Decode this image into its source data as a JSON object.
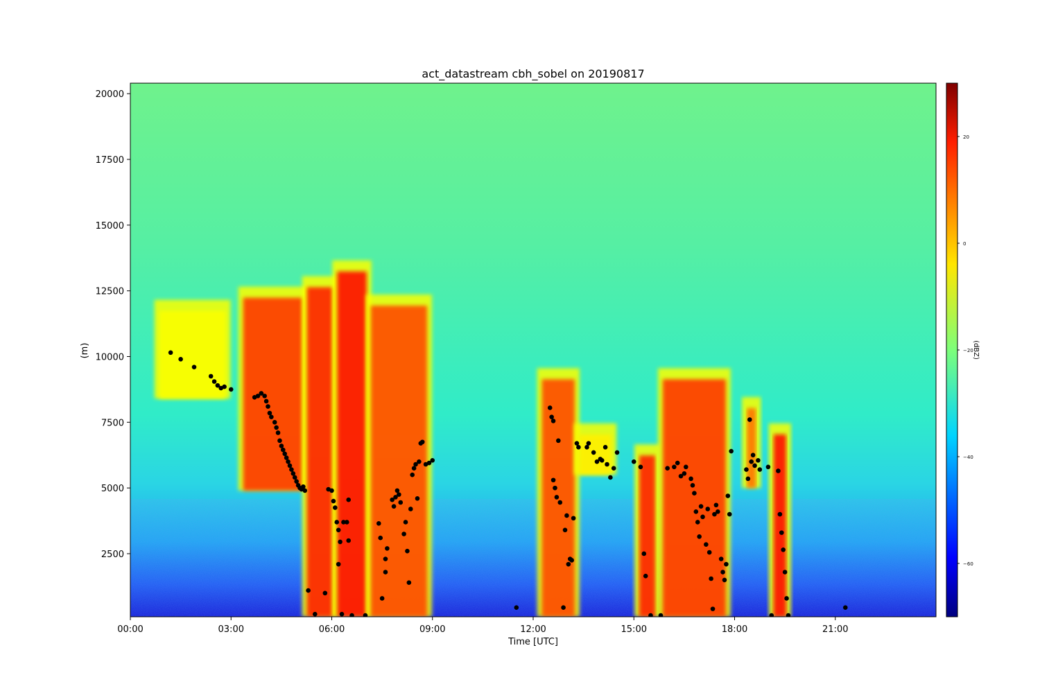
{
  "chart_data": {
    "type": "heatmap",
    "title": "act_datastream cbh_sobel on 20190817",
    "xlabel": "Time [UTC]",
    "ylabel": "(m)",
    "colorbar_label": "(dBZ)",
    "colormap": "jet",
    "x_ticks": [
      "00:00",
      "03:00",
      "06:00",
      "09:00",
      "12:00",
      "15:00",
      "18:00",
      "21:00"
    ],
    "x_tick_hours": [
      0,
      3,
      6,
      9,
      12,
      15,
      18,
      21
    ],
    "xlim_hours": [
      0,
      24
    ],
    "y_ticks": [
      2500,
      5000,
      7500,
      10000,
      12500,
      15000,
      17500,
      20000
    ],
    "ylim": [
      100,
      20400
    ],
    "colorbar_ticks": [
      20,
      0,
      -20,
      -40,
      -60
    ],
    "colorbar_range": [
      -70,
      30
    ],
    "background": {
      "description": "noise field",
      "near_surface_dbz": -55,
      "mid_altitude_dbz": -32,
      "upper_altitude_dbz": -25
    },
    "echo_features": [
      {
        "t_start": 0.8,
        "t_end": 2.9,
        "base": 8400,
        "top": 12000,
        "dbz": -8
      },
      {
        "t_start": 3.3,
        "t_end": 5.2,
        "base": 4900,
        "top": 12500,
        "dbz": 12
      },
      {
        "t_start": 5.2,
        "t_end": 6.1,
        "base": 100,
        "top": 12900,
        "dbz": 14
      },
      {
        "t_start": 6.1,
        "t_end": 7.1,
        "base": 100,
        "top": 13500,
        "dbz": 16
      },
      {
        "t_start": 7.1,
        "t_end": 8.9,
        "base": 100,
        "top": 12200,
        "dbz": 10
      },
      {
        "t_start": 12.2,
        "t_end": 13.3,
        "base": 100,
        "top": 9400,
        "dbz": 10
      },
      {
        "t_start": 13.3,
        "t_end": 14.4,
        "base": 5500,
        "top": 7300,
        "dbz": -6
      },
      {
        "t_start": 15.1,
        "t_end": 15.7,
        "base": 100,
        "top": 6500,
        "dbz": 14
      },
      {
        "t_start": 15.8,
        "t_end": 17.8,
        "base": 100,
        "top": 9400,
        "dbz": 12
      },
      {
        "t_start": 18.3,
        "t_end": 18.7,
        "base": 5000,
        "top": 8300,
        "dbz": 6
      },
      {
        "t_start": 19.1,
        "t_end": 19.6,
        "base": 100,
        "top": 7300,
        "dbz": 16
      }
    ],
    "cbh_points": [
      [
        1.2,
        10150
      ],
      [
        1.5,
        9900
      ],
      [
        1.9,
        9600
      ],
      [
        2.4,
        9250
      ],
      [
        2.5,
        9050
      ],
      [
        2.6,
        8900
      ],
      [
        2.7,
        8800
      ],
      [
        2.8,
        8850
      ],
      [
        3.0,
        8750
      ],
      [
        3.7,
        8450
      ],
      [
        3.8,
        8500
      ],
      [
        3.9,
        8600
      ],
      [
        4.0,
        8500
      ],
      [
        4.05,
        8300
      ],
      [
        4.1,
        8100
      ],
      [
        4.15,
        7850
      ],
      [
        4.2,
        7700
      ],
      [
        4.3,
        7500
      ],
      [
        4.35,
        7300
      ],
      [
        4.4,
        7100
      ],
      [
        4.45,
        6800
      ],
      [
        4.5,
        6600
      ],
      [
        4.55,
        6450
      ],
      [
        4.6,
        6300
      ],
      [
        4.65,
        6150
      ],
      [
        4.7,
        6000
      ],
      [
        4.75,
        5850
      ],
      [
        4.8,
        5700
      ],
      [
        4.85,
        5550
      ],
      [
        4.9,
        5400
      ],
      [
        4.95,
        5250
      ],
      [
        5.0,
        5100
      ],
      [
        5.05,
        5000
      ],
      [
        5.1,
        4950
      ],
      [
        5.15,
        5050
      ],
      [
        5.2,
        4900
      ],
      [
        5.3,
        1100
      ],
      [
        5.5,
        200
      ],
      [
        5.8,
        1000
      ],
      [
        5.9,
        4950
      ],
      [
        6.0,
        4900
      ],
      [
        6.05,
        4500
      ],
      [
        6.1,
        4250
      ],
      [
        6.15,
        3700
      ],
      [
        6.2,
        3400
      ],
      [
        6.2,
        2100
      ],
      [
        6.25,
        2950
      ],
      [
        6.3,
        200
      ],
      [
        6.35,
        3700
      ],
      [
        6.45,
        3700
      ],
      [
        6.5,
        4550
      ],
      [
        6.5,
        3000
      ],
      [
        6.6,
        150
      ],
      [
        7.0,
        150
      ],
      [
        7.4,
        3650
      ],
      [
        7.45,
        3100
      ],
      [
        7.5,
        800
      ],
      [
        7.6,
        2300
      ],
      [
        7.6,
        1800
      ],
      [
        7.65,
        2700
      ],
      [
        7.8,
        4550
      ],
      [
        7.85,
        4300
      ],
      [
        7.9,
        4650
      ],
      [
        7.95,
        4900
      ],
      [
        8.0,
        4750
      ],
      [
        8.05,
        4450
      ],
      [
        8.15,
        3250
      ],
      [
        8.2,
        3700
      ],
      [
        8.25,
        2600
      ],
      [
        8.3,
        1400
      ],
      [
        8.35,
        4200
      ],
      [
        8.4,
        5500
      ],
      [
        8.45,
        5750
      ],
      [
        8.5,
        5900
      ],
      [
        8.55,
        4600
      ],
      [
        8.6,
        6000
      ],
      [
        8.65,
        6700
      ],
      [
        8.7,
        6750
      ],
      [
        8.8,
        5900
      ],
      [
        8.9,
        5950
      ],
      [
        9.0,
        6050
      ],
      [
        11.5,
        450
      ],
      [
        12.5,
        8050
      ],
      [
        12.55,
        7700
      ],
      [
        12.6,
        7550
      ],
      [
        12.6,
        5300
      ],
      [
        12.65,
        5000
      ],
      [
        12.7,
        4650
      ],
      [
        12.75,
        6800
      ],
      [
        12.8,
        4450
      ],
      [
        12.9,
        450
      ],
      [
        12.95,
        3400
      ],
      [
        13.0,
        3950
      ],
      [
        13.05,
        2100
      ],
      [
        13.1,
        2300
      ],
      [
        13.15,
        2250
      ],
      [
        13.2,
        3850
      ],
      [
        13.3,
        6700
      ],
      [
        13.35,
        6550
      ],
      [
        13.6,
        6550
      ],
      [
        13.65,
        6700
      ],
      [
        13.8,
        6350
      ],
      [
        13.9,
        6000
      ],
      [
        14.0,
        6100
      ],
      [
        14.05,
        6050
      ],
      [
        14.15,
        6550
      ],
      [
        14.2,
        5900
      ],
      [
        14.3,
        5400
      ],
      [
        14.4,
        5750
      ],
      [
        14.5,
        6350
      ],
      [
        15.0,
        6000
      ],
      [
        15.2,
        5800
      ],
      [
        15.3,
        2500
      ],
      [
        15.35,
        1650
      ],
      [
        15.5,
        150
      ],
      [
        15.8,
        150
      ],
      [
        16.0,
        5750
      ],
      [
        16.2,
        5800
      ],
      [
        16.3,
        5950
      ],
      [
        16.4,
        5450
      ],
      [
        16.5,
        5550
      ],
      [
        16.55,
        5800
      ],
      [
        16.7,
        5350
      ],
      [
        16.75,
        5100
      ],
      [
        16.8,
        4800
      ],
      [
        16.85,
        4100
      ],
      [
        16.9,
        3700
      ],
      [
        16.95,
        3150
      ],
      [
        17.0,
        4300
      ],
      [
        17.05,
        3900
      ],
      [
        17.15,
        2850
      ],
      [
        17.2,
        4200
      ],
      [
        17.25,
        2550
      ],
      [
        17.3,
        1550
      ],
      [
        17.35,
        400
      ],
      [
        17.4,
        4000
      ],
      [
        17.45,
        4350
      ],
      [
        17.5,
        4100
      ],
      [
        17.6,
        2300
      ],
      [
        17.65,
        1800
      ],
      [
        17.7,
        1500
      ],
      [
        17.75,
        2100
      ],
      [
        17.8,
        4700
      ],
      [
        17.85,
        4000
      ],
      [
        17.9,
        6400
      ],
      [
        18.35,
        5700
      ],
      [
        18.4,
        5350
      ],
      [
        18.45,
        7600
      ],
      [
        18.5,
        6000
      ],
      [
        18.55,
        6250
      ],
      [
        18.6,
        5850
      ],
      [
        18.7,
        6050
      ],
      [
        18.75,
        5700
      ],
      [
        19.0,
        5800
      ],
      [
        19.1,
        150
      ],
      [
        19.3,
        5650
      ],
      [
        19.35,
        4000
      ],
      [
        19.4,
        3300
      ],
      [
        19.45,
        2650
      ],
      [
        19.5,
        1800
      ],
      [
        19.55,
        800
      ],
      [
        19.6,
        150
      ],
      [
        21.3,
        450
      ]
    ]
  }
}
